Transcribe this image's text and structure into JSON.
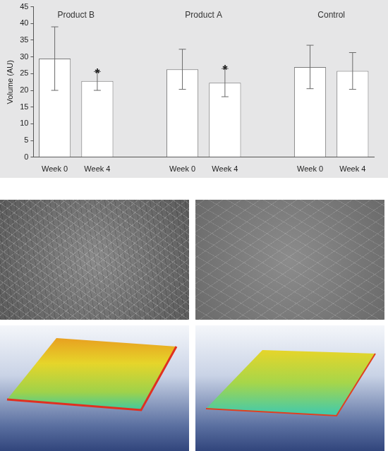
{
  "chart_data": {
    "type": "bar",
    "categories": [
      "Week 0",
      "Week 4",
      null,
      "Week 0",
      "Week 4",
      null,
      "Week 0",
      "Week 4"
    ],
    "values": [
      29.5,
      22.8,
      null,
      26.3,
      22.3,
      null,
      27,
      25.8
    ],
    "errors": [
      9.5,
      2.8,
      null,
      6,
      4.2,
      null,
      6.5,
      5.5
    ],
    "groups": [
      {
        "name": "Product B",
        "first": 0,
        "last": 1
      },
      {
        "name": "Product A",
        "first": 3,
        "last": 4
      },
      {
        "name": "Control",
        "first": 6,
        "last": 7
      }
    ],
    "annotation": "*",
    "annotated": [
      false,
      true,
      null,
      false,
      true,
      null,
      false,
      false
    ],
    "color": "#ffffff",
    "y_label": "Volume (AU)",
    "ylim": [
      0,
      45
    ],
    "yticks": [
      0,
      5,
      10,
      15,
      20,
      25,
      30,
      35,
      40,
      45
    ],
    "grid": false
  }
}
